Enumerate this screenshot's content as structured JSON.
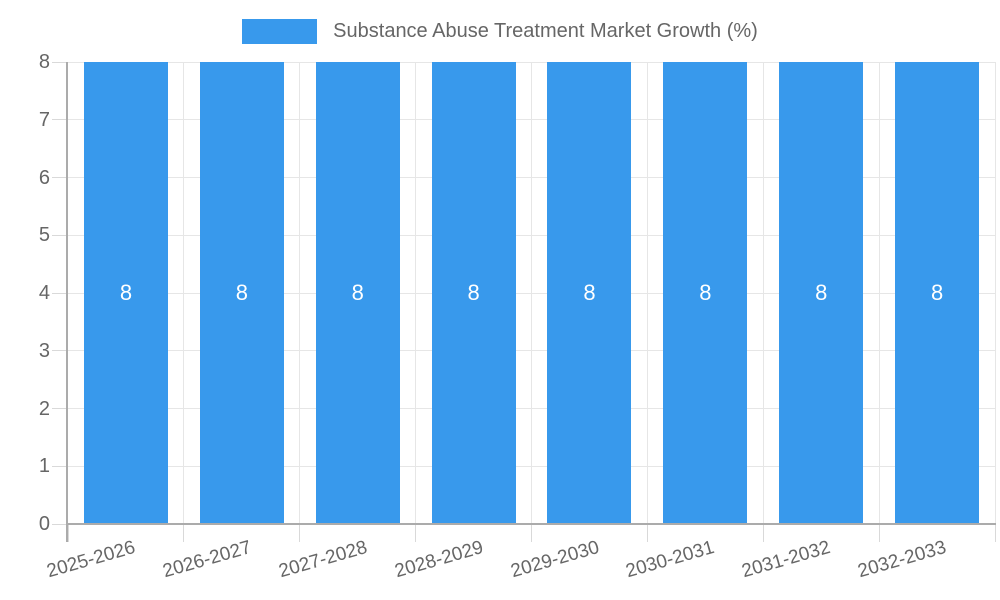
{
  "legend": {
    "label": "Substance Abuse Treatment Market Growth (%)"
  },
  "chart_data": {
    "type": "bar",
    "title": "Substance Abuse Treatment Market Growth (%)",
    "categories": [
      "2025-2026",
      "2026-2027",
      "2027-2028",
      "2028-2029",
      "2029-2030",
      "2030-2031",
      "2031-2032",
      "2032-2033"
    ],
    "values": [
      8,
      8,
      8,
      8,
      8,
      8,
      8,
      8
    ],
    "bar_labels": [
      "8",
      "8",
      "8",
      "8",
      "8",
      "8",
      "8",
      "8"
    ],
    "xlabel": "",
    "ylabel": "",
    "ylim": [
      0,
      8
    ],
    "yticks": [
      0,
      1,
      2,
      3,
      4,
      5,
      6,
      7,
      8
    ],
    "grid": true,
    "legend_position": "top",
    "colors": {
      "bar": "#3899ec",
      "bar_label": "#ffffff",
      "grid": "#e6e6e6",
      "tick_mark": "#d9d9d9",
      "axis": "#ababab",
      "text": "#666666"
    }
  }
}
